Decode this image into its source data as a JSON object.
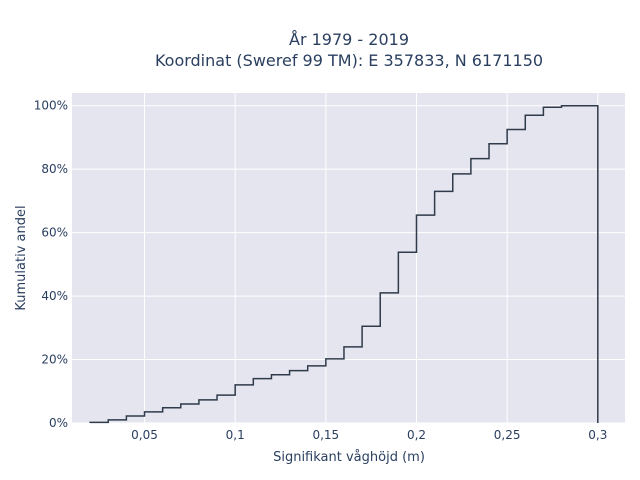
{
  "chart_data": {
    "type": "line",
    "style": "step",
    "title": [
      "År 1979 - 2019",
      "Koordinat (Sweref 99 TM): E 357833, N 6171150"
    ],
    "xlabel": "Signifikant våghöjd (m)",
    "ylabel": "Kumulativ andel",
    "xlim": [
      0.01,
      0.315
    ],
    "ylim": [
      0,
      1.04
    ],
    "xticks": [
      0.05,
      0.1,
      0.15,
      0.2,
      0.25,
      0.3
    ],
    "xtick_labels": [
      "0,05",
      "0,1",
      "0,15",
      "0,2",
      "0,25",
      "0,3"
    ],
    "yticks": [
      0,
      0.2,
      0.4,
      0.6,
      0.8,
      1.0
    ],
    "ytick_labels": [
      "0%",
      "20%",
      "40%",
      "60%",
      "80%",
      "100%"
    ],
    "grid": true,
    "colors": {
      "background": "#e5e5f0",
      "grid": "#ffffff",
      "line": "#2f3b4a"
    },
    "series": [
      {
        "x": [
          0.02,
          0.03,
          0.04,
          0.05,
          0.06,
          0.07,
          0.08,
          0.09,
          0.1,
          0.11,
          0.12,
          0.13,
          0.14,
          0.15,
          0.16,
          0.17,
          0.18,
          0.19,
          0.2,
          0.21,
          0.22,
          0.23,
          0.24,
          0.25,
          0.26,
          0.27,
          0.28,
          0.29,
          0.3
        ],
        "y": [
          0.0,
          0.002,
          0.01,
          0.022,
          0.035,
          0.048,
          0.06,
          0.073,
          0.088,
          0.12,
          0.14,
          0.152,
          0.165,
          0.18,
          0.202,
          0.24,
          0.305,
          0.41,
          0.538,
          0.655,
          0.73,
          0.785,
          0.833,
          0.88,
          0.925,
          0.97,
          0.995,
          1.0,
          1.0
        ]
      }
    ]
  }
}
